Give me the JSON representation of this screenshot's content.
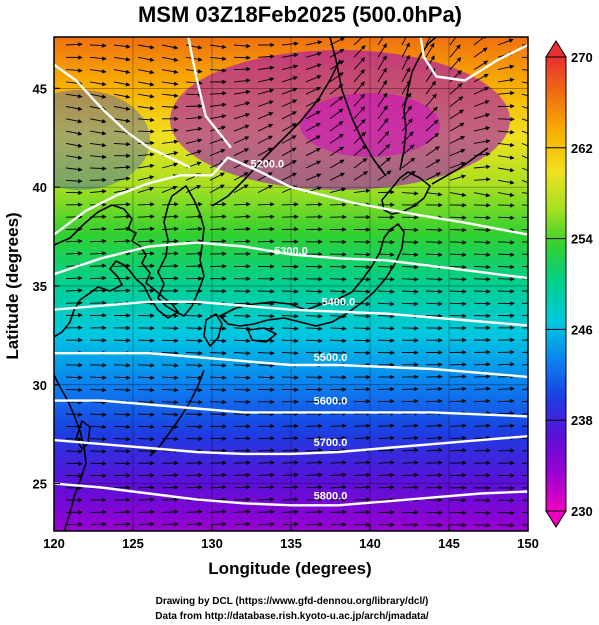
{
  "title": "MSM 03Z18Feb2025 (500.0hPa)",
  "xlabel": "Longitude (degrees)",
  "ylabel": "Latitude  (degrees)",
  "credits": [
    "Drawing by DCL (https://www.gfd-dennou.org/library/dcl/)",
    "Data from http://database.rish.kyoto-u.ac.jp/arch/jmadata/"
  ],
  "colors": {
    "contour": "#ffffff",
    "coast": "#000000",
    "vector": "#000000",
    "colormap": [
      "#ef00c0",
      "#9a00d2",
      "#5a10d8",
      "#1c3ee2",
      "#0a84f0",
      "#00c8e0",
      "#00d090",
      "#30d030",
      "#a8e020",
      "#f0e020",
      "#f8b000",
      "#f07010",
      "#e83030"
    ]
  },
  "chart_data": {
    "type": "heatmap",
    "variable": "temperature (K) with geopotential height contours (m) and wind streamlines",
    "level_hPa": 500.0,
    "xlim": [
      120,
      150
    ],
    "ylim": [
      22.6,
      47.6
    ],
    "x_ticks": [
      "120",
      "125",
      "130",
      "135",
      "140",
      "145",
      "150"
    ],
    "y_ticks": [
      "25",
      "30",
      "35",
      "40",
      "45"
    ],
    "colorbar": {
      "min": 230,
      "max": 270,
      "ticks": [
        "270",
        "262",
        "254",
        "246",
        "238",
        "230"
      ]
    },
    "contours": [
      {
        "label": "5200.0",
        "points": [
          [
            120.0,
            37.6
          ],
          [
            122.0,
            38.8
          ],
          [
            124.0,
            39.6
          ],
          [
            126.0,
            40.2
          ],
          [
            128.0,
            40.6
          ],
          [
            130.0,
            40.6
          ],
          [
            131.0,
            41.5
          ],
          [
            133.0,
            40.8
          ],
          [
            135.0,
            40.0
          ],
          [
            137.0,
            39.6
          ],
          [
            139.0,
            39.2
          ],
          [
            141.0,
            38.9
          ],
          [
            143.0,
            38.6
          ],
          [
            146.0,
            38.2
          ],
          [
            150.0,
            37.6
          ]
        ],
        "label_at": [
          133.5,
          41.0
        ]
      },
      {
        "label": "5300.0",
        "points": [
          [
            120.0,
            35.6
          ],
          [
            123.0,
            36.4
          ],
          [
            126.0,
            37.0
          ],
          [
            129.0,
            37.2
          ],
          [
            132.0,
            37.0
          ],
          [
            135.0,
            36.6
          ],
          [
            138.0,
            36.4
          ],
          [
            141.0,
            36.3
          ],
          [
            144.0,
            36.0
          ],
          [
            147.0,
            35.7
          ],
          [
            150.0,
            35.4
          ]
        ],
        "label_at": [
          135.0,
          36.6
        ]
      },
      {
        "label": "5400.0",
        "points": [
          [
            120.0,
            33.8
          ],
          [
            123.0,
            34.0
          ],
          [
            126.0,
            34.2
          ],
          [
            129.0,
            34.2
          ],
          [
            132.0,
            34.0
          ],
          [
            135.0,
            33.8
          ],
          [
            138.0,
            33.7
          ],
          [
            141.0,
            33.6
          ],
          [
            144.0,
            33.4
          ],
          [
            147.0,
            33.2
          ],
          [
            150.0,
            33.0
          ]
        ],
        "label_at": [
          138.0,
          34.0
        ]
      },
      {
        "label": "5500.0",
        "points": [
          [
            120.0,
            31.6
          ],
          [
            123.0,
            31.6
          ],
          [
            126.0,
            31.6
          ],
          [
            129.0,
            31.4
          ],
          [
            132.0,
            31.2
          ],
          [
            135.0,
            31.0
          ],
          [
            138.0,
            31.0
          ],
          [
            141.0,
            30.9
          ],
          [
            144.0,
            30.8
          ],
          [
            147.0,
            30.6
          ],
          [
            150.0,
            30.4
          ]
        ],
        "label_at": [
          137.5,
          31.2
        ]
      },
      {
        "label": "5600.0",
        "points": [
          [
            120.0,
            29.2
          ],
          [
            123.0,
            29.2
          ],
          [
            126.0,
            29.0
          ],
          [
            129.0,
            28.8
          ],
          [
            132.0,
            28.6
          ],
          [
            135.0,
            28.6
          ],
          [
            138.0,
            28.6
          ],
          [
            141.0,
            28.6
          ],
          [
            144.0,
            28.6
          ],
          [
            147.0,
            28.5
          ],
          [
            150.0,
            28.4
          ]
        ],
        "label_at": [
          137.5,
          29.0
        ]
      },
      {
        "label": "5700.0",
        "points": [
          [
            120.0,
            27.2
          ],
          [
            123.0,
            27.0
          ],
          [
            126.0,
            26.8
          ],
          [
            129.0,
            26.6
          ],
          [
            132.0,
            26.5
          ],
          [
            135.0,
            26.5
          ],
          [
            138.0,
            26.6
          ],
          [
            141.0,
            26.8
          ],
          [
            144.0,
            27.0
          ],
          [
            147.0,
            27.2
          ],
          [
            150.0,
            27.4
          ]
        ],
        "label_at": [
          137.5,
          26.9
        ]
      },
      {
        "label": "5800.0",
        "points": [
          [
            120.0,
            25.0
          ],
          [
            123.0,
            24.8
          ],
          [
            126.0,
            24.5
          ],
          [
            129.0,
            24.2
          ],
          [
            132.0,
            24.0
          ],
          [
            135.0,
            23.9
          ],
          [
            138.0,
            23.9
          ],
          [
            141.0,
            24.1
          ],
          [
            144.0,
            24.3
          ],
          [
            147.0,
            24.5
          ],
          [
            150.0,
            24.6
          ]
        ],
        "label_at": [
          137.5,
          24.2
        ]
      },
      {
        "label": "",
        "points": [
          [
            128.5,
            47.6
          ],
          [
            129.0,
            45.6
          ],
          [
            129.6,
            43.6
          ],
          [
            130.6,
            42.6
          ],
          [
            131.2,
            42.0
          ]
        ]
      },
      {
        "label": "",
        "points": [
          [
            143.2,
            47.6
          ],
          [
            143.4,
            46.6
          ],
          [
            144.2,
            45.6
          ],
          [
            146.0,
            45.4
          ],
          [
            148.0,
            46.4
          ],
          [
            150.0,
            47.2
          ]
        ]
      },
      {
        "label": "",
        "points": [
          [
            120.0,
            46.2
          ],
          [
            121.4,
            45.4
          ],
          [
            123.0,
            44.0
          ],
          [
            124.6,
            42.8
          ],
          [
            126.0,
            42.0
          ],
          [
            127.6,
            41.4
          ],
          [
            128.6,
            41.0
          ]
        ]
      }
    ]
  }
}
